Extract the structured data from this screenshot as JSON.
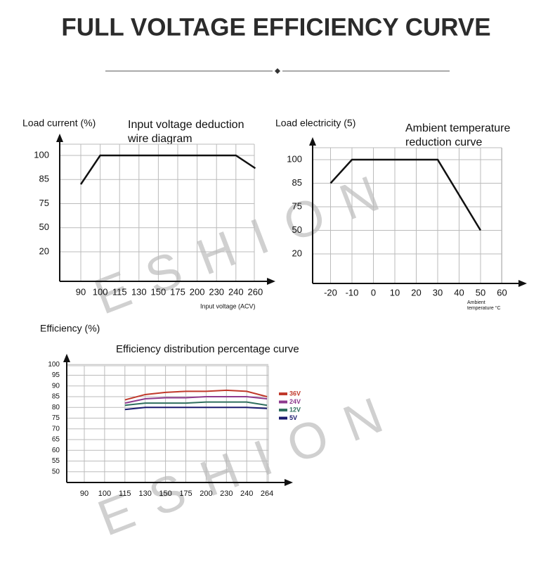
{
  "page_title": "FULL VOLTAGE EFFICIENCY CURVE",
  "watermark": "ESHION",
  "chart_data": [
    {
      "type": "line",
      "title": "Input voltage deduction wire diagram",
      "ylabel": "Load current (%)",
      "xlabel": "Input voltage (ACV)",
      "categories": [
        "90",
        "100",
        "115",
        "130",
        "150",
        "175",
        "200",
        "230",
        "240",
        "260"
      ],
      "values": [
        83,
        100,
        100,
        100,
        100,
        100,
        100,
        100,
        100,
        92
      ],
      "color": "#111111",
      "yticks": [
        20,
        50,
        75,
        85,
        100
      ],
      "grid": true
    },
    {
      "type": "line",
      "title": "Ambient temperature reduction curve",
      "ylabel": "Load electricity (5)",
      "xlabel": "Ambient temperature °C",
      "x": [
        -20,
        -10,
        30,
        50
      ],
      "values": [
        85,
        100,
        100,
        50
      ],
      "color": "#111111",
      "xlim": [
        -30,
        70
      ],
      "xticks": [
        -20,
        -10,
        0,
        10,
        20,
        30,
        40,
        50,
        60
      ],
      "yticks": [
        20,
        50,
        75,
        85,
        100
      ],
      "grid": true
    },
    {
      "type": "line",
      "title": "Efficiency distribution percentage curve",
      "ylabel": "Efficiency (%)",
      "categories": [
        "90",
        "100",
        "115",
        "130",
        "150",
        "175",
        "200",
        "230",
        "240",
        "264"
      ],
      "series": [
        {
          "name": "36V",
          "color": "#c0392b",
          "values": [
            null,
            null,
            83.5,
            86,
            87,
            87.5,
            87.5,
            88,
            87.5,
            85
          ]
        },
        {
          "name": "24V",
          "color": "#8e3a8e",
          "values": [
            null,
            null,
            82,
            84,
            84.5,
            84.5,
            85,
            85,
            85,
            84
          ]
        },
        {
          "name": "12V",
          "color": "#2f6f5f",
          "values": [
            null,
            null,
            81,
            82,
            82,
            82,
            82.5,
            82.5,
            82.5,
            81
          ]
        },
        {
          "name": "5V",
          "color": "#1a1a6e",
          "values": [
            null,
            null,
            79,
            80,
            80,
            80,
            80,
            80,
            80,
            79.5
          ]
        }
      ],
      "ylim": [
        45,
        105
      ],
      "yticks": [
        50,
        55,
        60,
        65,
        70,
        75,
        80,
        85,
        90,
        95,
        100
      ],
      "grid": true
    }
  ]
}
